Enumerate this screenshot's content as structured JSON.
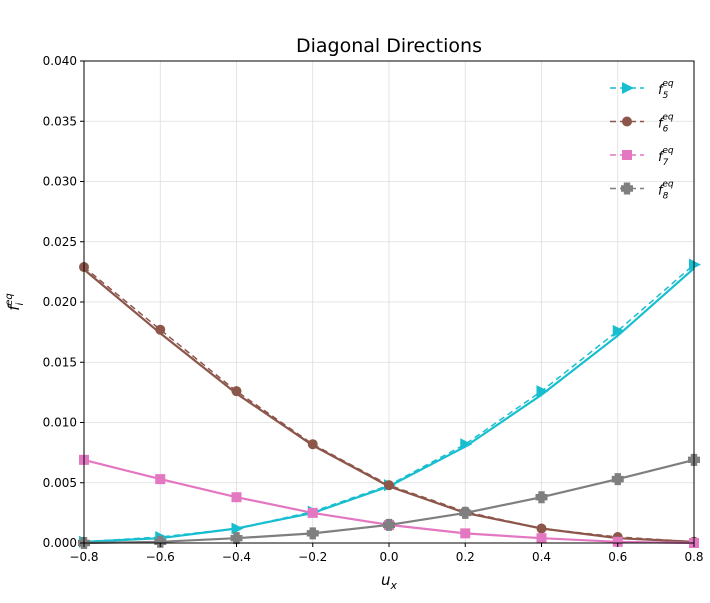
{
  "chart_data": {
    "type": "line",
    "title": "Diagonal Directions",
    "xlabel": "u",
    "xlabel_sub": "x",
    "ylabel": "f",
    "ylabel_sup": "eq",
    "ylabel_sub": "i",
    "xlim": [
      -0.8,
      0.8
    ],
    "ylim": [
      0.0,
      0.04
    ],
    "x_ticks": [
      "−0.8",
      "−0.6",
      "−0.4",
      "−0.2",
      "0.0",
      "0.2",
      "0.4",
      "0.6",
      "0.8"
    ],
    "y_ticks": [
      "0.000",
      "0.005",
      "0.010",
      "0.015",
      "0.020",
      "0.025",
      "0.030",
      "0.035",
      "0.040"
    ],
    "grid": true,
    "legend_position": "top-right",
    "x": [
      -0.8,
      -0.6,
      -0.4,
      -0.2,
      0.0,
      0.2,
      0.4,
      0.6,
      0.8
    ],
    "series": [
      {
        "name": "f",
        "sup": "eq",
        "sub": "5",
        "color": "#17becf",
        "marker": "triangle-right",
        "values": [
          0.0001,
          0.0005,
          0.0012,
          0.0026,
          0.0048,
          0.0082,
          0.0126,
          0.0176,
          0.0231
        ],
        "smooth": [
          0.0001,
          0.0004,
          0.0012,
          0.0025,
          0.0047,
          0.008,
          0.0123,
          0.0172,
          0.0228
        ]
      },
      {
        "name": "f",
        "sup": "eq",
        "sub": "6",
        "color": "#8c564b",
        "marker": "circle",
        "values": [
          0.0229,
          0.0177,
          0.0126,
          0.0082,
          0.0048,
          0.0026,
          0.0012,
          0.0005,
          0.0001
        ],
        "smooth": [
          0.0227,
          0.0174,
          0.0124,
          0.0081,
          0.0047,
          0.0025,
          0.0012,
          0.0004,
          0.0001
        ]
      },
      {
        "name": "f",
        "sup": "eq",
        "sub": "7",
        "color": "#e377c2",
        "marker": "square",
        "values": [
          0.0069,
          0.0053,
          0.0038,
          0.0025,
          0.0015,
          0.0008,
          0.0004,
          0.0001,
          0.0
        ],
        "smooth": [
          0.0069,
          0.0053,
          0.0038,
          0.0025,
          0.0015,
          0.0008,
          0.0004,
          0.0001,
          0.0
        ]
      },
      {
        "name": "f",
        "sup": "eq",
        "sub": "8",
        "color": "#7f7f7f",
        "marker": "plus",
        "values": [
          0.0,
          0.0001,
          0.0004,
          0.0008,
          0.0015,
          0.0025,
          0.0038,
          0.0053,
          0.0069
        ],
        "smooth": [
          0.0,
          0.0001,
          0.0004,
          0.0008,
          0.0015,
          0.0025,
          0.0038,
          0.0053,
          0.0069
        ]
      }
    ]
  }
}
